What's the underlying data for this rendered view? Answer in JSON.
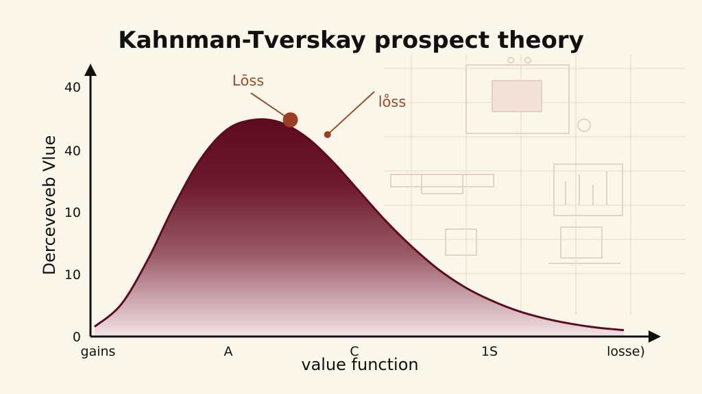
{
  "chart_data": {
    "type": "area",
    "title": "Kahnman-Tverskay prospect theory",
    "xlabel": "value function",
    "ylabel": "Derceveveb Vlue",
    "x_tick_labels": [
      "gains",
      "A",
      "C",
      "1S",
      "losse)"
    ],
    "y_tick_labels": [
      "0",
      "10",
      "10",
      "40",
      "40"
    ],
    "x": [
      0,
      0.5,
      1,
      1.5,
      2,
      2.5,
      3,
      3.5,
      4,
      4.5,
      5,
      5.5,
      6,
      6.5,
      7,
      7.5,
      8,
      8.5,
      9,
      9.5,
      10
    ],
    "values": [
      0.2,
      0.65,
      1.55,
      2.65,
      3.6,
      4.2,
      4.4,
      4.35,
      4.05,
      3.55,
      2.95,
      2.35,
      1.82,
      1.36,
      1.0,
      0.73,
      0.52,
      0.37,
      0.26,
      0.18,
      0.13
    ],
    "y_range": [
      0,
      5
    ],
    "annotations": [
      {
        "label": "Lōss",
        "x": 3.7,
        "y": 4.4
      },
      {
        "label": "lo̊ss",
        "x": 4.4,
        "y": 4.1
      }
    ],
    "colors": {
      "curve": "#5c0b1e",
      "fill_top": "#5e0a20",
      "fill_bottom": "#f3e4e7",
      "annotation": "#9a4a2c",
      "background": "#fbf6ea"
    },
    "grid": false
  }
}
